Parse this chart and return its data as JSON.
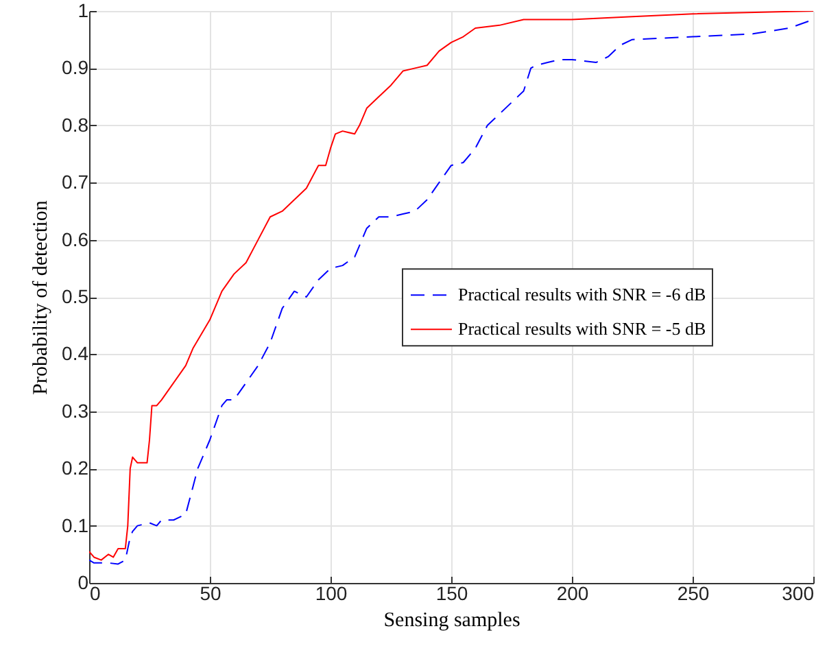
{
  "chart_data": {
    "type": "line",
    "xlabel": "Sensing samples",
    "ylabel": "Probability of detection",
    "xlim": [
      0,
      300
    ],
    "xticks": [
      0,
      50,
      100,
      150,
      200,
      250,
      300
    ],
    "ylim": [
      0,
      1
    ],
    "yticks": [
      0,
      0.1,
      0.2,
      0.3,
      0.4,
      0.5,
      0.6,
      0.7,
      0.8,
      0.9,
      1
    ],
    "grid": true,
    "legend": "right",
    "series": [
      {
        "name": "Practical results with SNR = -6 dB",
        "color": "#0000ff",
        "line_style": "dashed",
        "x": [
          0,
          2,
          5,
          8,
          12,
          15,
          17,
          18,
          20,
          25,
          28,
          30,
          35,
          40,
          45,
          50,
          55,
          57,
          60,
          65,
          70,
          75,
          80,
          85,
          90,
          95,
          100,
          105,
          110,
          115,
          120,
          125,
          130,
          135,
          140,
          145,
          150,
          155,
          160,
          165,
          170,
          180,
          183,
          185,
          190,
          195,
          200,
          210,
          215,
          220,
          225,
          250,
          275,
          290,
          300
        ],
        "values": [
          0.04,
          0.035,
          0.035,
          0.035,
          0.033,
          0.04,
          0.08,
          0.09,
          0.1,
          0.105,
          0.1,
          0.11,
          0.11,
          0.12,
          0.2,
          0.25,
          0.31,
          0.32,
          0.32,
          0.35,
          0.38,
          0.42,
          0.48,
          0.51,
          0.5,
          0.53,
          0.55,
          0.555,
          0.57,
          0.62,
          0.64,
          0.64,
          0.645,
          0.65,
          0.67,
          0.7,
          0.73,
          0.735,
          0.76,
          0.8,
          0.82,
          0.86,
          0.9,
          0.905,
          0.91,
          0.915,
          0.915,
          0.91,
          0.92,
          0.94,
          0.95,
          0.955,
          0.96,
          0.97,
          0.985
        ]
      },
      {
        "name": "Practical results with SNR = -5 dB",
        "color": "#ff0000",
        "line_style": "solid",
        "x": [
          0,
          2,
          5,
          8,
          10,
          12,
          15,
          16,
          17,
          18,
          20,
          22,
          24,
          25,
          26,
          28,
          30,
          35,
          40,
          43,
          50,
          55,
          60,
          65,
          70,
          75,
          80,
          85,
          90,
          95,
          98,
          100,
          102,
          105,
          110,
          112,
          115,
          120,
          125,
          130,
          135,
          140,
          145,
          150,
          155,
          160,
          170,
          180,
          200,
          225,
          250,
          300
        ],
        "values": [
          0.055,
          0.045,
          0.04,
          0.05,
          0.045,
          0.06,
          0.06,
          0.1,
          0.2,
          0.22,
          0.21,
          0.21,
          0.21,
          0.25,
          0.31,
          0.31,
          0.32,
          0.35,
          0.38,
          0.41,
          0.46,
          0.51,
          0.54,
          0.56,
          0.6,
          0.64,
          0.65,
          0.67,
          0.69,
          0.73,
          0.73,
          0.76,
          0.785,
          0.79,
          0.785,
          0.8,
          0.83,
          0.85,
          0.87,
          0.895,
          0.9,
          0.905,
          0.93,
          0.945,
          0.955,
          0.97,
          0.975,
          0.985,
          0.985,
          0.99,
          0.995,
          1
        ]
      }
    ]
  }
}
